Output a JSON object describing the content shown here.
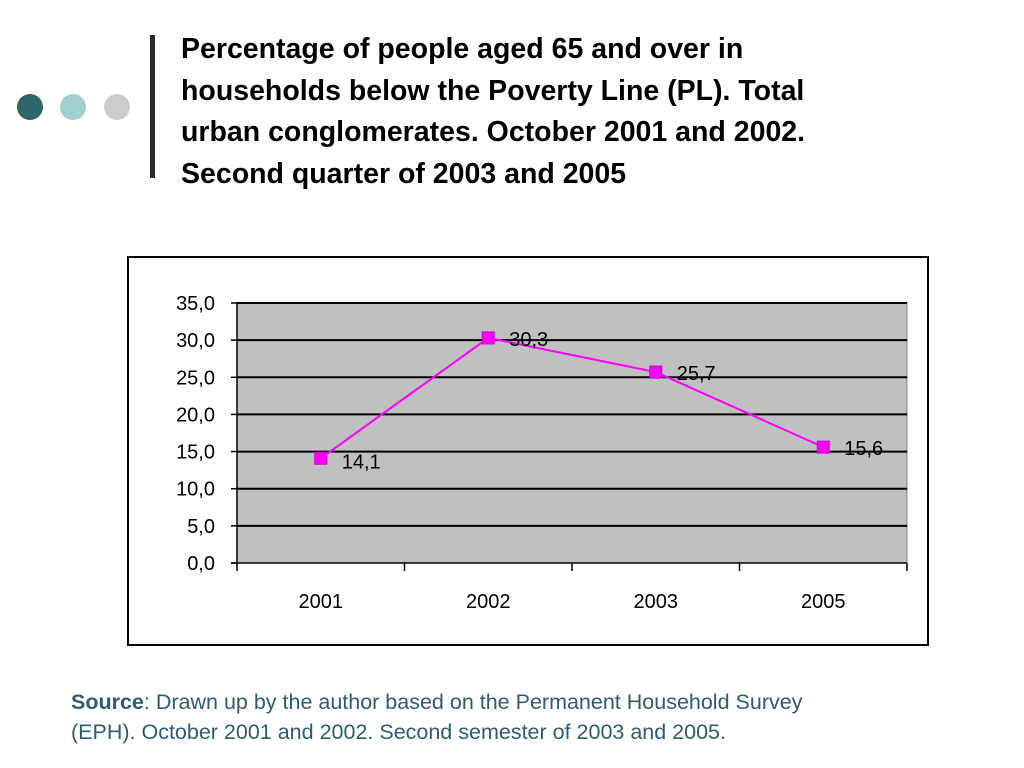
{
  "title": {
    "lines": [
      "Percentage of people aged 65 and over in",
      "households below the Poverty Line (PL). Total",
      "urban conglomerates. October 2001 and 2002.",
      "Second quarter of 2003 and 2005"
    ]
  },
  "source": {
    "label": "Source",
    "line1": ": Drawn up by the author based on the Permanent Household Survey",
    "line2": "(EPH). October 2001 and 2002. Second semester of 2003 and 2005."
  },
  "colors": {
    "title_text": "#000000",
    "source_text": "#2f5b72",
    "plot_background": "#c0c0c0",
    "series": "#ff00ff",
    "gridline": "#000000",
    "decor_dot_1": "#2f6469",
    "decor_dot_2": "#9fcfcf",
    "decor_dot_3": "#cccccc"
  },
  "chart_data": {
    "type": "line",
    "categories": [
      "2001",
      "2002",
      "2003",
      "2005"
    ],
    "series": [
      {
        "values": [
          14.1,
          30.3,
          25.7,
          15.6
        ],
        "labels": [
          "14,1",
          "30,3",
          "25,7",
          "15,6"
        ],
        "marker": "square"
      }
    ],
    "yticks": [
      "0,0",
      "5,0",
      "10,0",
      "15,0",
      "20,0",
      "25,0",
      "30,0",
      "35,0"
    ],
    "ylim": [
      0,
      35
    ],
    "grid": true,
    "legend": "none",
    "xlabel": "",
    "ylabel": ""
  }
}
